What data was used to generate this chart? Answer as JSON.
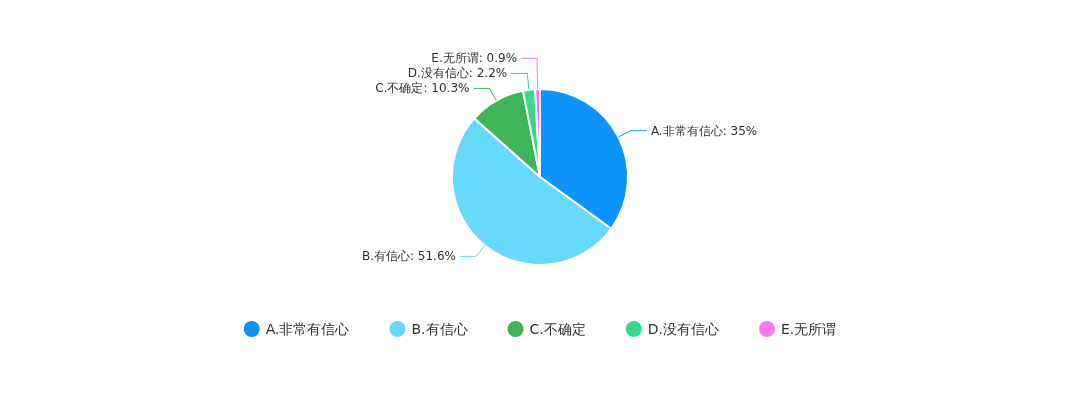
{
  "chart_data": {
    "type": "pie",
    "categories": [
      "A.非常有信心",
      "B.有信心",
      "C.不确定",
      "D.没有信心",
      "E.无所谓"
    ],
    "values": [
      35,
      51.6,
      10.3,
      2.2,
      0.9
    ],
    "colors": [
      "#0e93fb",
      "#67d9fd",
      "#3fb55a",
      "#35da8e",
      "#f57bee"
    ],
    "value_labels": [
      ": 35%",
      ": 51.6%",
      ": 10.3%",
      ": 2.2%",
      ": 0.9%"
    ],
    "legend": "bottom"
  }
}
